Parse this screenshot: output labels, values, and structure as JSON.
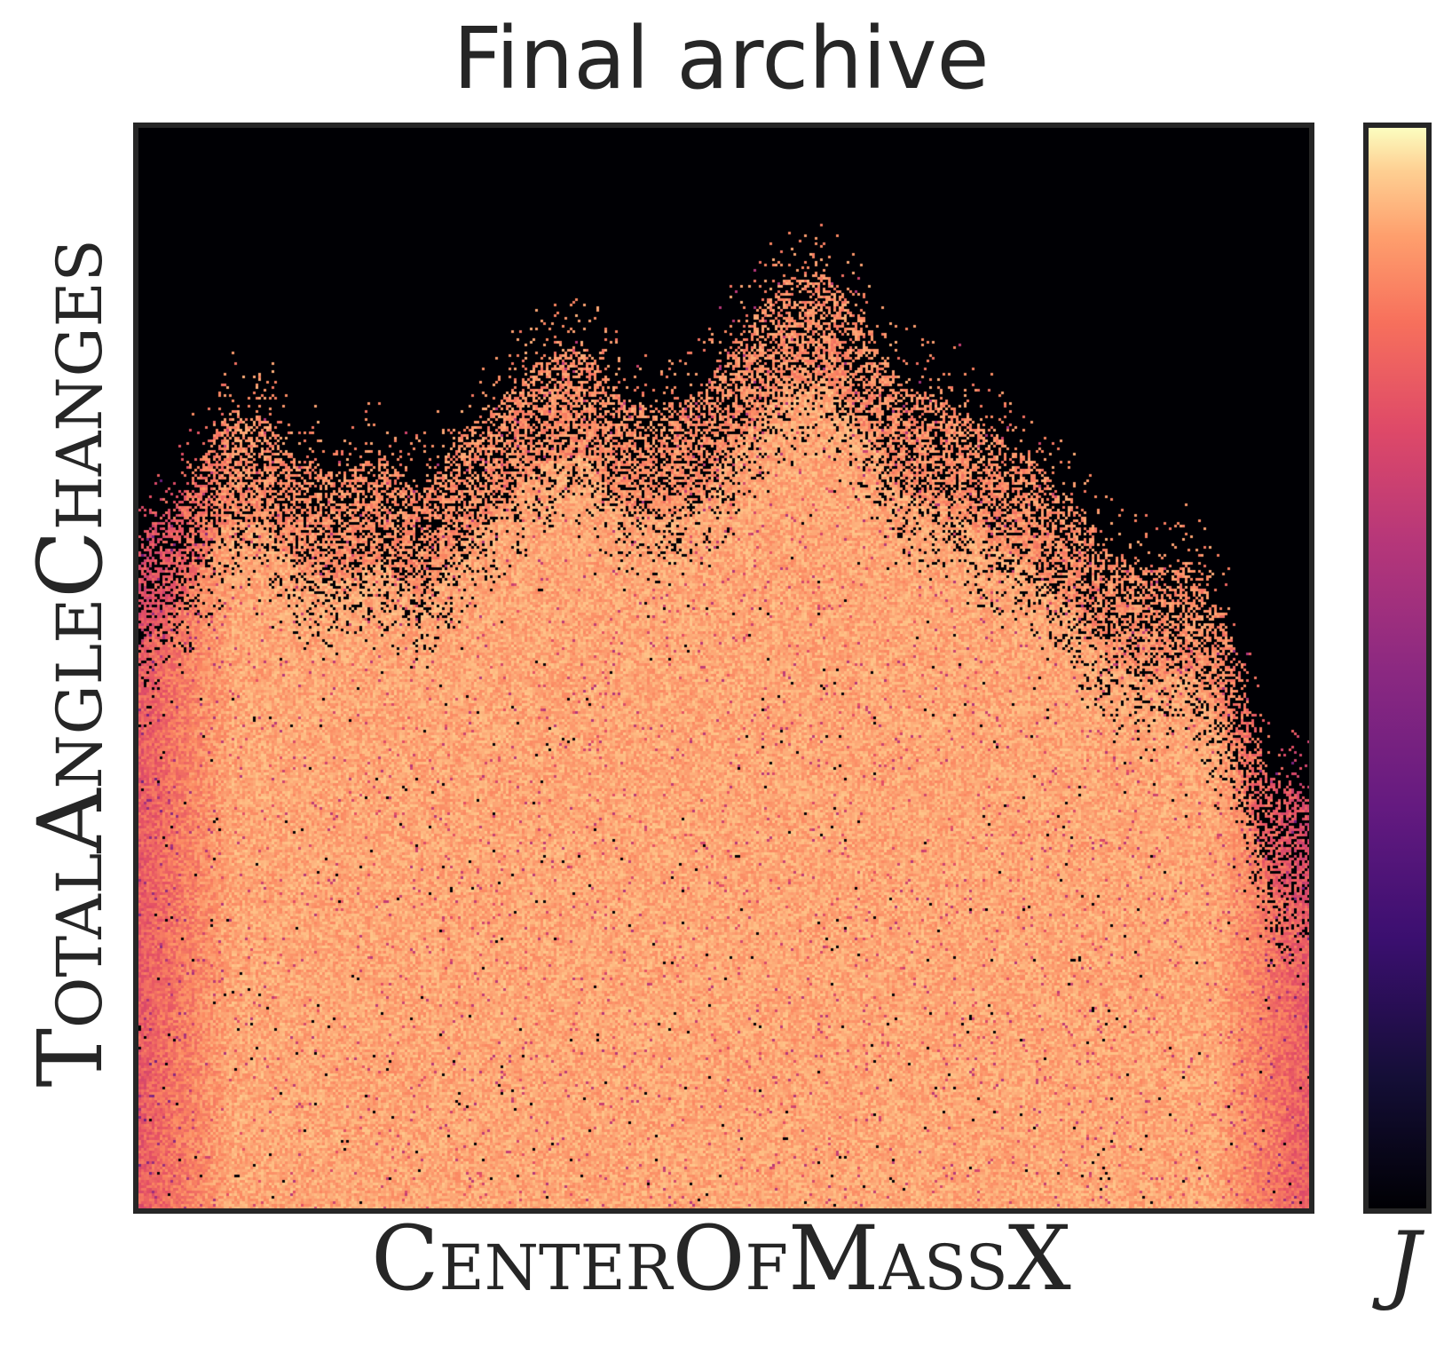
{
  "chart_data": {
    "type": "heatmap",
    "title": "Final archive",
    "xlabel": "CenterOfMassX",
    "ylabel": "TotalAngleChanges",
    "colorbar_label": "J",
    "colormap": "magma",
    "grid": false,
    "legend": "none",
    "ticks": "none",
    "empty_cell_color": "#000004",
    "filled_region": {
      "description_of_values": "archive occupancy fraction of height per column (0 = bottom, 1 = top), sampled left to right",
      "column_fill_height": [
        0.62,
        0.66,
        0.73,
        0.74,
        0.69,
        0.68,
        0.7,
        0.66,
        0.72,
        0.75,
        0.79,
        0.8,
        0.75,
        0.74,
        0.76,
        0.82,
        0.86,
        0.87,
        0.82,
        0.76,
        0.75,
        0.72,
        0.7,
        0.66,
        0.61,
        0.59,
        0.6,
        0.54,
        0.4,
        0.38
      ],
      "mean_value_high": 0.82,
      "mean_value_edges": 0.65
    }
  }
}
